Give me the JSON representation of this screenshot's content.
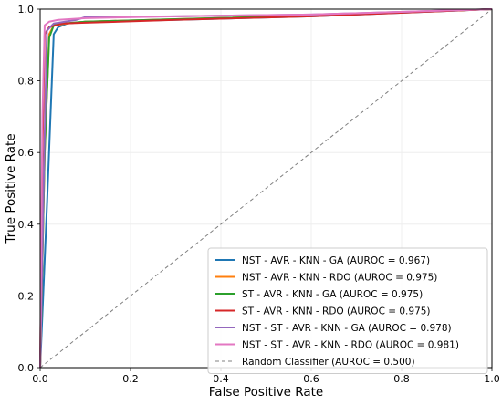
{
  "chart_data": {
    "type": "line",
    "title": "",
    "xlabel": "False Positive Rate",
    "ylabel": "True Positive Rate",
    "xlim": [
      0.0,
      1.0
    ],
    "ylim": [
      0.0,
      1.0
    ],
    "xticks": [
      "0.0",
      "0.2",
      "0.4",
      "0.6",
      "0.8",
      "1.0"
    ],
    "yticks": [
      "0.0",
      "0.2",
      "0.4",
      "0.6",
      "0.8",
      "1.0"
    ],
    "grid": true,
    "legend_position": "lower-right",
    "series": [
      {
        "name": "NST - AVR - KNN - GA (AUROC = 0.967)",
        "color": "#1f77b4",
        "points": [
          [
            0.0,
            0.0
          ],
          [
            0.015,
            0.45
          ],
          [
            0.03,
            0.93
          ],
          [
            0.04,
            0.95
          ],
          [
            0.06,
            0.96
          ],
          [
            0.1,
            0.965
          ],
          [
            0.3,
            0.97
          ],
          [
            0.6,
            0.98
          ],
          [
            1.0,
            1.0
          ]
        ]
      },
      {
        "name": "NST - AVR - KNN - RDO (AUROC = 0.975)",
        "color": "#ff7f0e",
        "points": [
          [
            0.0,
            0.0
          ],
          [
            0.01,
            0.6
          ],
          [
            0.02,
            0.93
          ],
          [
            0.03,
            0.955
          ],
          [
            0.06,
            0.96
          ],
          [
            0.1,
            0.965
          ],
          [
            0.3,
            0.972
          ],
          [
            0.6,
            0.982
          ],
          [
            1.0,
            1.0
          ]
        ]
      },
      {
        "name": "ST - AVR - KNN - GA (AUROC = 0.975)",
        "color": "#2ca02c",
        "points": [
          [
            0.0,
            0.0
          ],
          [
            0.01,
            0.6
          ],
          [
            0.02,
            0.92
          ],
          [
            0.03,
            0.955
          ],
          [
            0.05,
            0.96
          ],
          [
            0.1,
            0.965
          ],
          [
            0.3,
            0.972
          ],
          [
            0.6,
            0.982
          ],
          [
            1.0,
            1.0
          ]
        ]
      },
      {
        "name": "ST - AVR - KNN - RDO (AUROC = 0.975)",
        "color": "#d62728",
        "points": [
          [
            0.0,
            0.0
          ],
          [
            0.005,
            0.6
          ],
          [
            0.01,
            0.93
          ],
          [
            0.02,
            0.95
          ],
          [
            0.05,
            0.96
          ],
          [
            0.1,
            0.962
          ],
          [
            0.3,
            0.97
          ],
          [
            0.6,
            0.98
          ],
          [
            1.0,
            1.0
          ]
        ]
      },
      {
        "name": "NST - ST - AVR - KNN - GA (AUROC = 0.978)",
        "color": "#9467bd",
        "points": [
          [
            0.0,
            0.0
          ],
          [
            0.01,
            0.65
          ],
          [
            0.015,
            0.94
          ],
          [
            0.03,
            0.96
          ],
          [
            0.08,
            0.97
          ],
          [
            0.1,
            0.978
          ],
          [
            0.3,
            0.98
          ],
          [
            0.6,
            0.985
          ],
          [
            1.0,
            1.0
          ]
        ]
      },
      {
        "name": "NST - ST - AVR - KNN - RDO (AUROC = 0.981)",
        "color": "#e377c2",
        "points": [
          [
            0.0,
            0.0
          ],
          [
            0.005,
            0.7
          ],
          [
            0.01,
            0.955
          ],
          [
            0.02,
            0.965
          ],
          [
            0.04,
            0.97
          ],
          [
            0.1,
            0.975
          ],
          [
            0.3,
            0.98
          ],
          [
            0.6,
            0.985
          ],
          [
            1.0,
            1.0
          ]
        ]
      }
    ],
    "baseline": {
      "name": "Random Classifier (AUROC = 0.500)",
      "color": "#808080",
      "points": [
        [
          0.0,
          0.0
        ],
        [
          1.0,
          1.0
        ]
      ]
    }
  }
}
